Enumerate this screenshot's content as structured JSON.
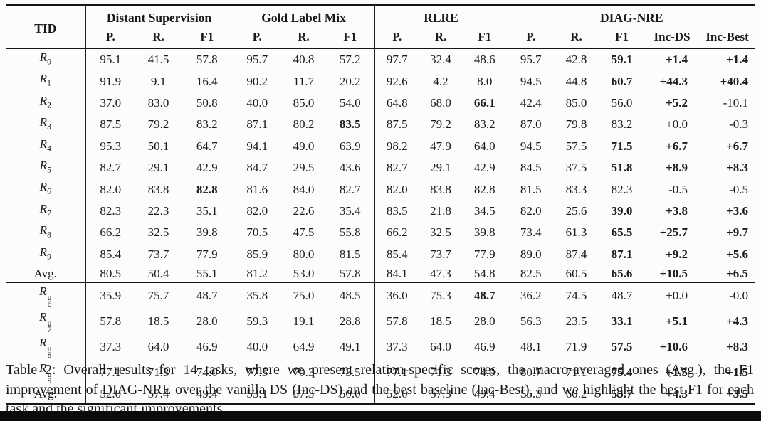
{
  "colors": {
    "background": "#fcfcfc",
    "rule": "#151515",
    "text": "#1a1a1a",
    "bottom_bar": "#0b0b0b"
  },
  "caption": "Table 2: Overall results for 14 tasks, where we present relation-specific scores, the macro-averaged ones (Avg.), the F1 improvement of DIAG-NRE over the vanilla DS (Inc-DS) and the best baseline (Inc-Best), and we highlight the best F1 for each task and the significant improvements.",
  "table": {
    "header": {
      "tid": "TID",
      "groups": [
        {
          "label": "Distant Supervision",
          "cols": [
            "P.",
            "R.",
            "F1"
          ]
        },
        {
          "label": "Gold Label Mix",
          "cols": [
            "P.",
            "R.",
            "F1"
          ]
        },
        {
          "label": "RLRE",
          "cols": [
            "P.",
            "R.",
            "F1"
          ]
        },
        {
          "label": "DIAG-NRE",
          "cols": [
            "P.",
            "R.",
            "F1",
            "Inc-DS",
            "Inc-Best"
          ]
        }
      ]
    },
    "sections": [
      {
        "name": "main-tasks",
        "rows": [
          {
            "tid": {
              "base": "R",
              "sub": "0"
            },
            "cells": [
              "95.1",
              "41.5",
              "57.8",
              "95.7",
              "40.8",
              "57.2",
              "97.7",
              "32.4",
              "48.6",
              "95.7",
              "42.8",
              "59.1",
              "+1.4",
              "+1.4"
            ],
            "bold": [
              11,
              12,
              13
            ]
          },
          {
            "tid": {
              "base": "R",
              "sub": "1"
            },
            "cells": [
              "91.9",
              "9.1",
              "16.4",
              "90.2",
              "11.7",
              "20.2",
              "92.6",
              "4.2",
              "8.0",
              "94.5",
              "44.8",
              "60.7",
              "+44.3",
              "+40.4"
            ],
            "bold": [
              11,
              12,
              13
            ]
          },
          {
            "tid": {
              "base": "R",
              "sub": "2"
            },
            "cells": [
              "37.0",
              "83.0",
              "50.8",
              "40.0",
              "85.0",
              "54.0",
              "64.8",
              "68.0",
              "66.1",
              "42.4",
              "85.0",
              "56.0",
              "+5.2",
              "-10.1"
            ],
            "bold": [
              8,
              12
            ]
          },
          {
            "tid": {
              "base": "R",
              "sub": "3"
            },
            "cells": [
              "87.5",
              "79.2",
              "83.2",
              "87.1",
              "80.2",
              "83.5",
              "87.5",
              "79.2",
              "83.2",
              "87.0",
              "79.8",
              "83.2",
              "+0.0",
              "-0.3"
            ],
            "bold": [
              5
            ]
          },
          {
            "tid": {
              "base": "R",
              "sub": "4"
            },
            "cells": [
              "95.3",
              "50.1",
              "64.7",
              "94.1",
              "49.0",
              "63.9",
              "98.2",
              "47.9",
              "64.0",
              "94.5",
              "57.5",
              "71.5",
              "+6.7",
              "+6.7"
            ],
            "bold": [
              11,
              12,
              13
            ]
          },
          {
            "tid": {
              "base": "R",
              "sub": "5"
            },
            "cells": [
              "82.7",
              "29.1",
              "42.9",
              "84.7",
              "29.5",
              "43.6",
              "82.7",
              "29.1",
              "42.9",
              "84.5",
              "37.5",
              "51.8",
              "+8.9",
              "+8.3"
            ],
            "bold": [
              11,
              12,
              13
            ]
          },
          {
            "tid": {
              "base": "R",
              "sub": "6"
            },
            "cells": [
              "82.0",
              "83.8",
              "82.8",
              "81.6",
              "84.0",
              "82.7",
              "82.0",
              "83.8",
              "82.8",
              "81.5",
              "83.3",
              "82.3",
              "-0.5",
              "-0.5"
            ],
            "bold": [
              2
            ]
          },
          {
            "tid": {
              "base": "R",
              "sub": "7"
            },
            "cells": [
              "82.3",
              "22.3",
              "35.1",
              "82.0",
              "22.6",
              "35.4",
              "83.5",
              "21.8",
              "34.5",
              "82.0",
              "25.6",
              "39.0",
              "+3.8",
              "+3.6"
            ],
            "bold": [
              11,
              12,
              13
            ]
          },
          {
            "tid": {
              "base": "R",
              "sub": "8"
            },
            "cells": [
              "66.2",
              "32.5",
              "39.8",
              "70.5",
              "47.5",
              "55.8",
              "66.2",
              "32.5",
              "39.8",
              "73.4",
              "61.3",
              "65.5",
              "+25.7",
              "+9.7"
            ],
            "bold": [
              11,
              12,
              13
            ]
          },
          {
            "tid": {
              "base": "R",
              "sub": "9"
            },
            "cells": [
              "85.4",
              "73.7",
              "77.9",
              "85.9",
              "80.0",
              "81.5",
              "85.4",
              "73.7",
              "77.9",
              "89.0",
              "87.4",
              "87.1",
              "+9.2",
              "+5.6"
            ],
            "bold": [
              11,
              12,
              13
            ]
          },
          {
            "tid": {
              "label": "Avg."
            },
            "cells": [
              "80.5",
              "50.4",
              "55.1",
              "81.2",
              "53.0",
              "57.8",
              "84.1",
              "47.3",
              "54.8",
              "82.5",
              "60.5",
              "65.6",
              "+10.5",
              "+6.5"
            ],
            "bold": [
              11,
              12,
              13
            ]
          }
        ]
      },
      {
        "name": "unlabeled-tasks",
        "rows": [
          {
            "tid": {
              "base": "R",
              "sub": "6",
              "sup": "u"
            },
            "cells": [
              "35.9",
              "75.7",
              "48.7",
              "35.8",
              "75.0",
              "48.5",
              "36.0",
              "75.3",
              "48.7",
              "36.2",
              "74.5",
              "48.7",
              "+0.0",
              "-0.0"
            ],
            "bold": [
              8
            ]
          },
          {
            "tid": {
              "base": "R",
              "sub": "7",
              "sup": "u"
            },
            "cells": [
              "57.8",
              "18.5",
              "28.0",
              "59.3",
              "19.1",
              "28.8",
              "57.8",
              "18.5",
              "28.0",
              "56.3",
              "23.5",
              "33.1",
              "+5.1",
              "+4.3"
            ],
            "bold": [
              11,
              12,
              13
            ]
          },
          {
            "tid": {
              "base": "R",
              "sub": "8",
              "sup": "u"
            },
            "cells": [
              "37.3",
              "64.0",
              "46.9",
              "40.0",
              "64.9",
              "49.1",
              "37.3",
              "64.0",
              "46.9",
              "48.1",
              "71.9",
              "57.5",
              "+10.6",
              "+8.3"
            ],
            "bold": [
              11,
              12,
              13
            ]
          },
          {
            "tid": {
              "base": "R",
              "sub": "9",
              "sup": "u"
            },
            "cells": [
              "77.1",
              "71.3",
              "74.0",
              "77.5",
              "70.3",
              "73.5",
              "77.1",
              "71.3",
              "74.0",
              "80.7",
              "71.1",
              "75.4",
              "+1.5",
              "+1.5"
            ],
            "bold": [
              11,
              12,
              13
            ]
          },
          {
            "tid": {
              "label": "Avg."
            },
            "cells": [
              "52.0",
              "57.4",
              "49.4",
              "53.1",
              "57.3",
              "50.0",
              "52.0",
              "57.3",
              "49.4",
              "55.3",
              "60.2",
              "53.7",
              "+4.3",
              "+3.5"
            ],
            "bold": [
              11,
              12,
              13
            ]
          }
        ]
      }
    ]
  }
}
